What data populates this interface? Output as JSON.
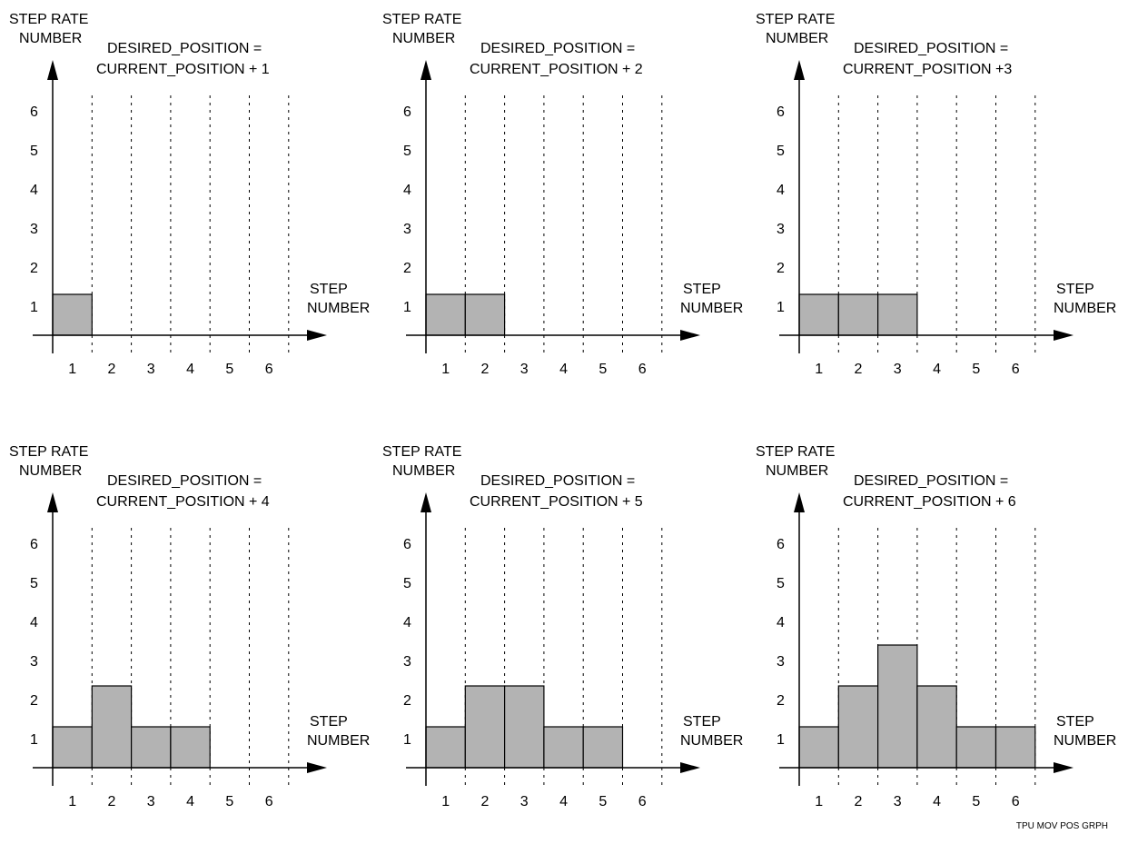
{
  "colors": {
    "bar_fill": "#b3b3b3",
    "line": "#000000",
    "background": "#ffffff"
  },
  "footer_label": "TPU MOV POS GRPH",
  "chart_data": [
    {
      "type": "bar",
      "title": [
        "DESIRED_POSITION =",
        "CURRENT_POSITION + 1"
      ],
      "ylabel": [
        "STEP RATE",
        "NUMBER"
      ],
      "xlabel": [
        "STEP",
        "NUMBER"
      ],
      "y_ticks": [
        "1",
        "2",
        "3",
        "4",
        "5",
        "6"
      ],
      "x_ticks": [
        "1",
        "2",
        "3",
        "4",
        "5",
        "6"
      ],
      "ylim": [
        0,
        6
      ],
      "grid": "vertical dotted",
      "values": [
        1
      ]
    },
    {
      "type": "bar",
      "title": [
        "DESIRED_POSITION =",
        "CURRENT_POSITION + 2"
      ],
      "ylabel": [
        "STEP RATE",
        "NUMBER"
      ],
      "xlabel": [
        "STEP",
        "NUMBER"
      ],
      "y_ticks": [
        "1",
        "2",
        "3",
        "4",
        "5",
        "6"
      ],
      "x_ticks": [
        "1",
        "2",
        "3",
        "4",
        "5",
        "6"
      ],
      "ylim": [
        0,
        6
      ],
      "grid": "vertical dotted",
      "values": [
        1,
        1
      ]
    },
    {
      "type": "bar",
      "title": [
        "DESIRED_POSITION =",
        "CURRENT_POSITION +3"
      ],
      "ylabel": [
        "STEP RATE",
        "NUMBER"
      ],
      "xlabel": [
        "STEP",
        "NUMBER"
      ],
      "y_ticks": [
        "1",
        "2",
        "3",
        "4",
        "5",
        "6"
      ],
      "x_ticks": [
        "1",
        "2",
        "3",
        "4",
        "5",
        "6"
      ],
      "ylim": [
        0,
        6
      ],
      "grid": "vertical dotted",
      "values": [
        1,
        1,
        1
      ]
    },
    {
      "type": "bar",
      "title": [
        "DESIRED_POSITION =",
        "CURRENT_POSITION + 4"
      ],
      "ylabel": [
        "STEP RATE",
        "NUMBER"
      ],
      "xlabel": [
        "STEP",
        "NUMBER"
      ],
      "y_ticks": [
        "1",
        "2",
        "3",
        "4",
        "5",
        "6"
      ],
      "x_ticks": [
        "1",
        "2",
        "3",
        "4",
        "5",
        "6"
      ],
      "ylim": [
        0,
        6
      ],
      "grid": "vertical dotted",
      "values": [
        1,
        2,
        1,
        1
      ]
    },
    {
      "type": "bar",
      "title": [
        "DESIRED_POSITION =",
        "CURRENT_POSITION + 5"
      ],
      "ylabel": [
        "STEP RATE",
        "NUMBER"
      ],
      "xlabel": [
        "STEP",
        "NUMBER"
      ],
      "y_ticks": [
        "1",
        "2",
        "3",
        "4",
        "5",
        "6"
      ],
      "x_ticks": [
        "1",
        "2",
        "3",
        "4",
        "5",
        "6"
      ],
      "ylim": [
        0,
        6
      ],
      "grid": "vertical dotted",
      "values": [
        1,
        2,
        2,
        1,
        1
      ]
    },
    {
      "type": "bar",
      "title": [
        "DESIRED_POSITION =",
        "CURRENT_POSITION + 6"
      ],
      "ylabel": [
        "STEP RATE",
        "NUMBER"
      ],
      "xlabel": [
        "STEP",
        "NUMBER"
      ],
      "y_ticks": [
        "1",
        "2",
        "3",
        "4",
        "5",
        "6"
      ],
      "x_ticks": [
        "1",
        "2",
        "3",
        "4",
        "5",
        "6"
      ],
      "ylim": [
        0,
        6
      ],
      "grid": "vertical dotted",
      "values": [
        1,
        2,
        3,
        2,
        1,
        1
      ]
    }
  ]
}
